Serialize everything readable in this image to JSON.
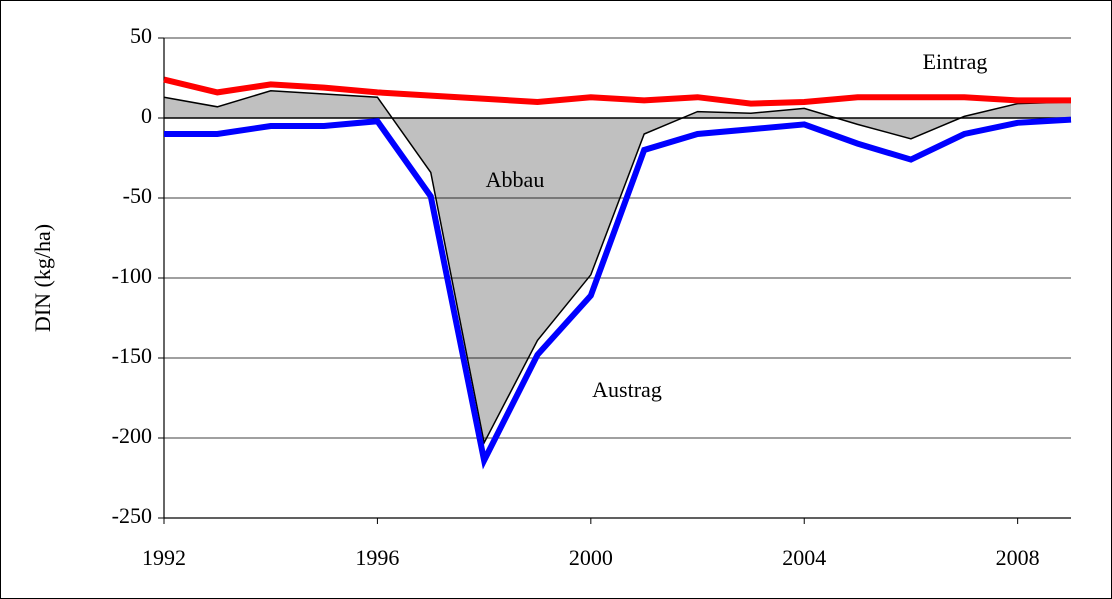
{
  "chart_data": {
    "type": "line",
    "y_label": "DIN  (kg/ha)",
    "x": [
      1992,
      1993,
      1994,
      1995,
      1996,
      1997,
      1998,
      1999,
      2000,
      2001,
      2002,
      2003,
      2004,
      2005,
      2006,
      2007,
      2008,
      2009
    ],
    "xlim": [
      1992,
      2009
    ],
    "xticks": [
      1992,
      1996,
      2000,
      2004,
      2008
    ],
    "ylim": [
      -250,
      50
    ],
    "yticks": [
      -250,
      -200,
      -150,
      -100,
      -50,
      0,
      50
    ],
    "grid": true,
    "series": [
      {
        "name": "Abbau",
        "kind": "area",
        "color": "#000000",
        "fill": "#c0c0c0",
        "values": [
          13,
          7,
          17,
          15,
          13,
          -34,
          -203,
          -139,
          -98,
          -10,
          4,
          3,
          6,
          -4,
          -13,
          1,
          9,
          10
        ]
      },
      {
        "name": "Eintrag",
        "kind": "line",
        "color": "#ff0000",
        "values": [
          24,
          16,
          21,
          19,
          16,
          14,
          12,
          10,
          13,
          11,
          13,
          9,
          10,
          13,
          13,
          13,
          11,
          11
        ]
      },
      {
        "name": "Austrag",
        "kind": "line",
        "color": "#0000ff",
        "values": [
          -10,
          -10,
          -5,
          -5,
          -2,
          -49,
          -214,
          -148,
          -111,
          -20,
          -10,
          -7,
          -4,
          -16,
          -26,
          -10,
          -3,
          -1
        ]
      }
    ]
  }
}
